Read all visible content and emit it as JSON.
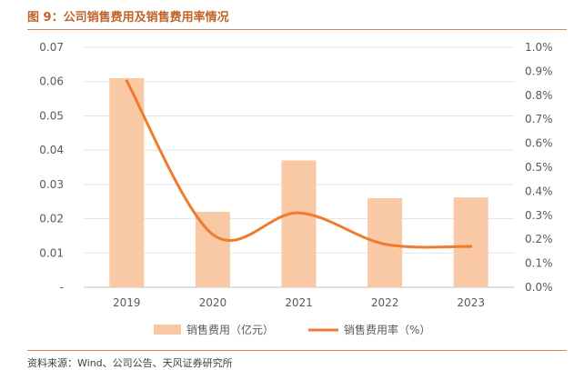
{
  "header": {
    "title": "图 9：公司销售费用及销售费用率情况"
  },
  "footer": {
    "source": "资料来源：Wind、公司公告、天风证券研究所"
  },
  "colors": {
    "bar": "#f8c9a4",
    "line": "#ef7b2d",
    "accent": "#c0652a",
    "axis_text": "#595959"
  },
  "chart_data": {
    "type": "bar+line",
    "title": "公司销售费用及销售费用率情况",
    "categories": [
      "2019",
      "2020",
      "2021",
      "2022",
      "2023"
    ],
    "series": [
      {
        "name": "销售费用（亿元）",
        "type": "bar",
        "axis": "left",
        "values": [
          0.061,
          0.022,
          0.037,
          0.026,
          0.0262
        ]
      },
      {
        "name": "销售费用率（%）",
        "type": "line",
        "axis": "right",
        "values": [
          0.86,
          0.22,
          0.31,
          0.18,
          0.17
        ]
      }
    ],
    "left_axis": {
      "ylim": [
        0,
        0.07
      ],
      "ticks": [
        "-",
        "0.01",
        "0.02",
        "0.03",
        "0.04",
        "0.05",
        "0.06",
        "0.07"
      ]
    },
    "right_axis": {
      "ylim": [
        0,
        1.0
      ],
      "ticks": [
        "0.0%",
        "0.1%",
        "0.2%",
        "0.3%",
        "0.4%",
        "0.5%",
        "0.6%",
        "0.7%",
        "0.8%",
        "0.9%",
        "1.0%"
      ]
    },
    "legend": {
      "position": "bottom",
      "items": [
        "销售费用（亿元）",
        "销售费用率（%）"
      ]
    }
  }
}
